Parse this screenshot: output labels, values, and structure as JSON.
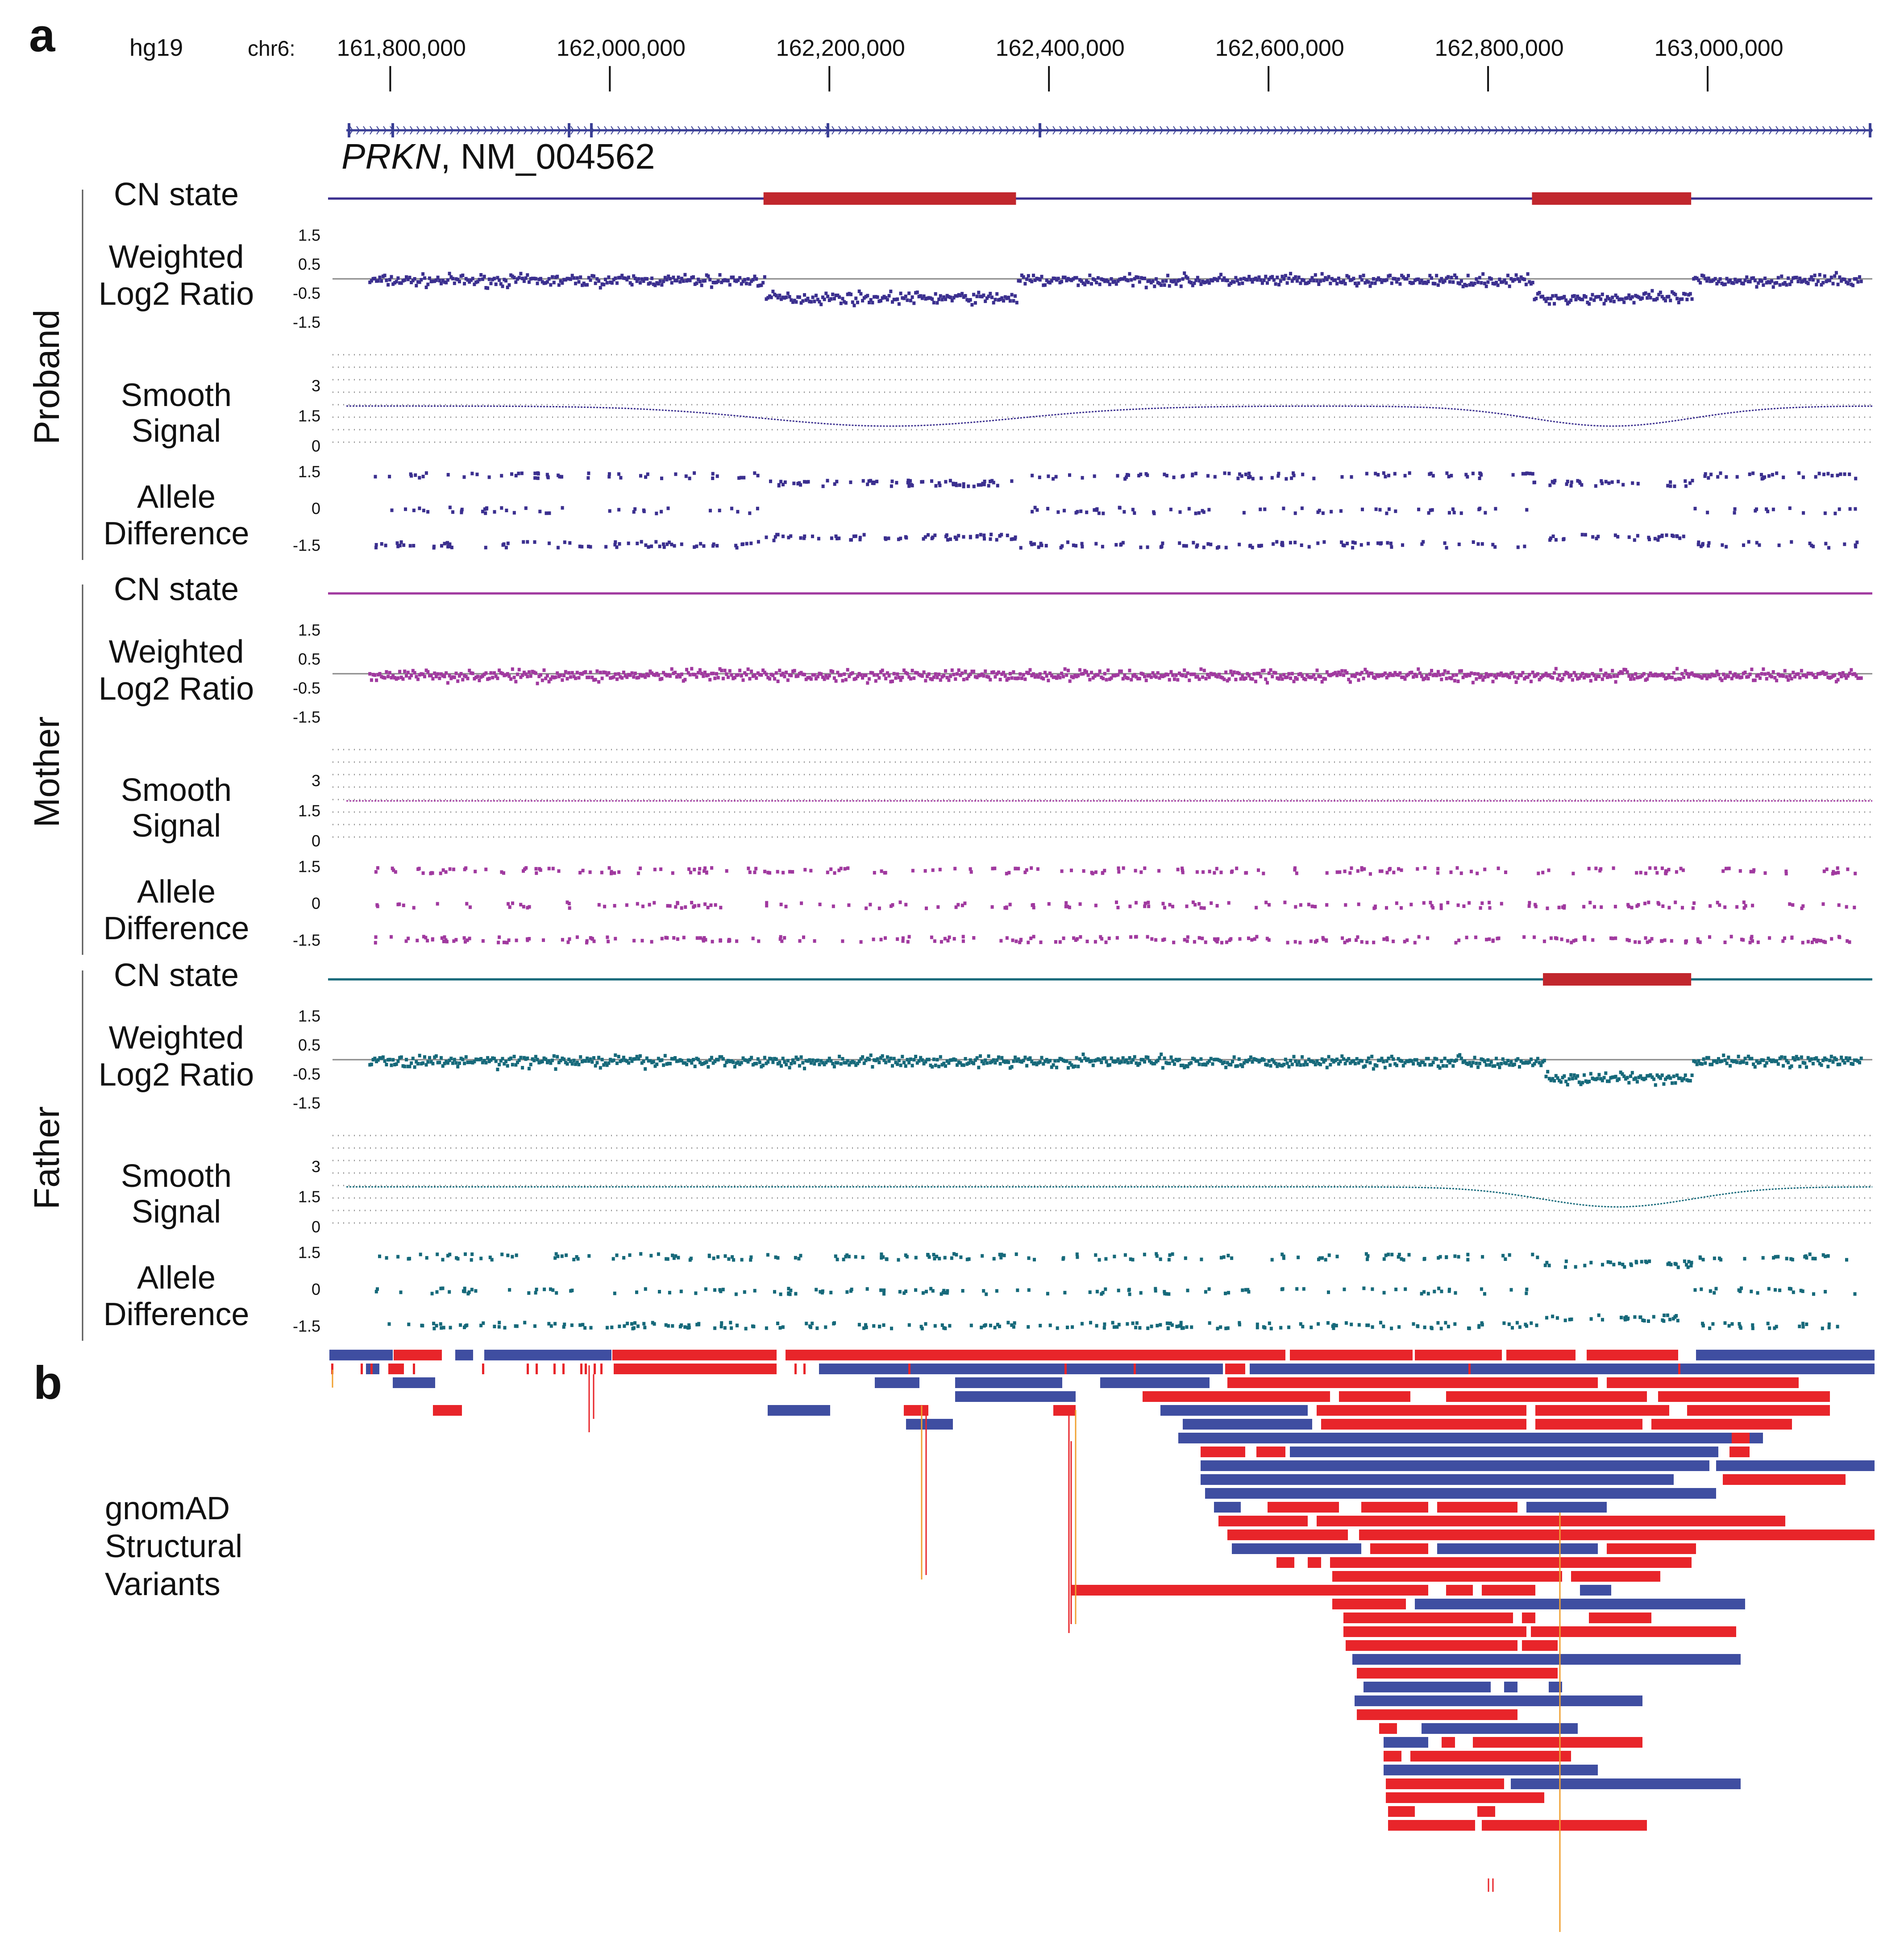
{
  "panel_labels": {
    "a": "a",
    "b": "b"
  },
  "genome": {
    "assembly": "hg19",
    "chrom": "chr6:"
  },
  "axis": {
    "ticks": [
      161800000,
      162000000,
      162200000,
      162400000,
      162600000,
      162800000,
      163000000
    ],
    "tick_labels": [
      "161,800,000",
      "162,000,000",
      "162,200,000",
      "162,400,000",
      "162,600,000",
      "162,800,000",
      "163,000,000"
    ],
    "range": [
      161760000,
      163150000
    ]
  },
  "gene": {
    "symbol": "PRKN",
    "transcript": ", NM_004562"
  },
  "track_labels": {
    "cn_state": "CN state",
    "wlr_1": "Weighted",
    "wlr_2": "Log2 Ratio",
    "smooth_1": "Smooth",
    "smooth_2": "Signal",
    "allele_1": "Allele",
    "allele_2": "Difference"
  },
  "y_ticks": {
    "log2": [
      "1.5",
      "0.5",
      "-0.5",
      "-1.5"
    ],
    "smooth": [
      "3",
      "1.5",
      "0"
    ],
    "allele": [
      "1.5",
      "0",
      "-1.5"
    ]
  },
  "samples": [
    {
      "name": "Proband",
      "color": "#3b2f8f",
      "deletions": [
        [
          162140000,
          162370000
        ],
        [
          162840000,
          162985000
        ]
      ]
    },
    {
      "name": "Mother",
      "color": "#a0399f",
      "deletions": []
    },
    {
      "name": "Father",
      "color": "#16697a",
      "deletions": [
        [
          162850000,
          162985000
        ]
      ]
    }
  ],
  "gnomad": {
    "label_1": "gnomAD",
    "label_2": "Structural",
    "label_3": "Variants",
    "deletion_color": "#e8252a",
    "duplication_color": "#3f4ea1",
    "other_color": "#f0a030"
  },
  "colors": {
    "cn_deletion": "#c1272d"
  }
}
